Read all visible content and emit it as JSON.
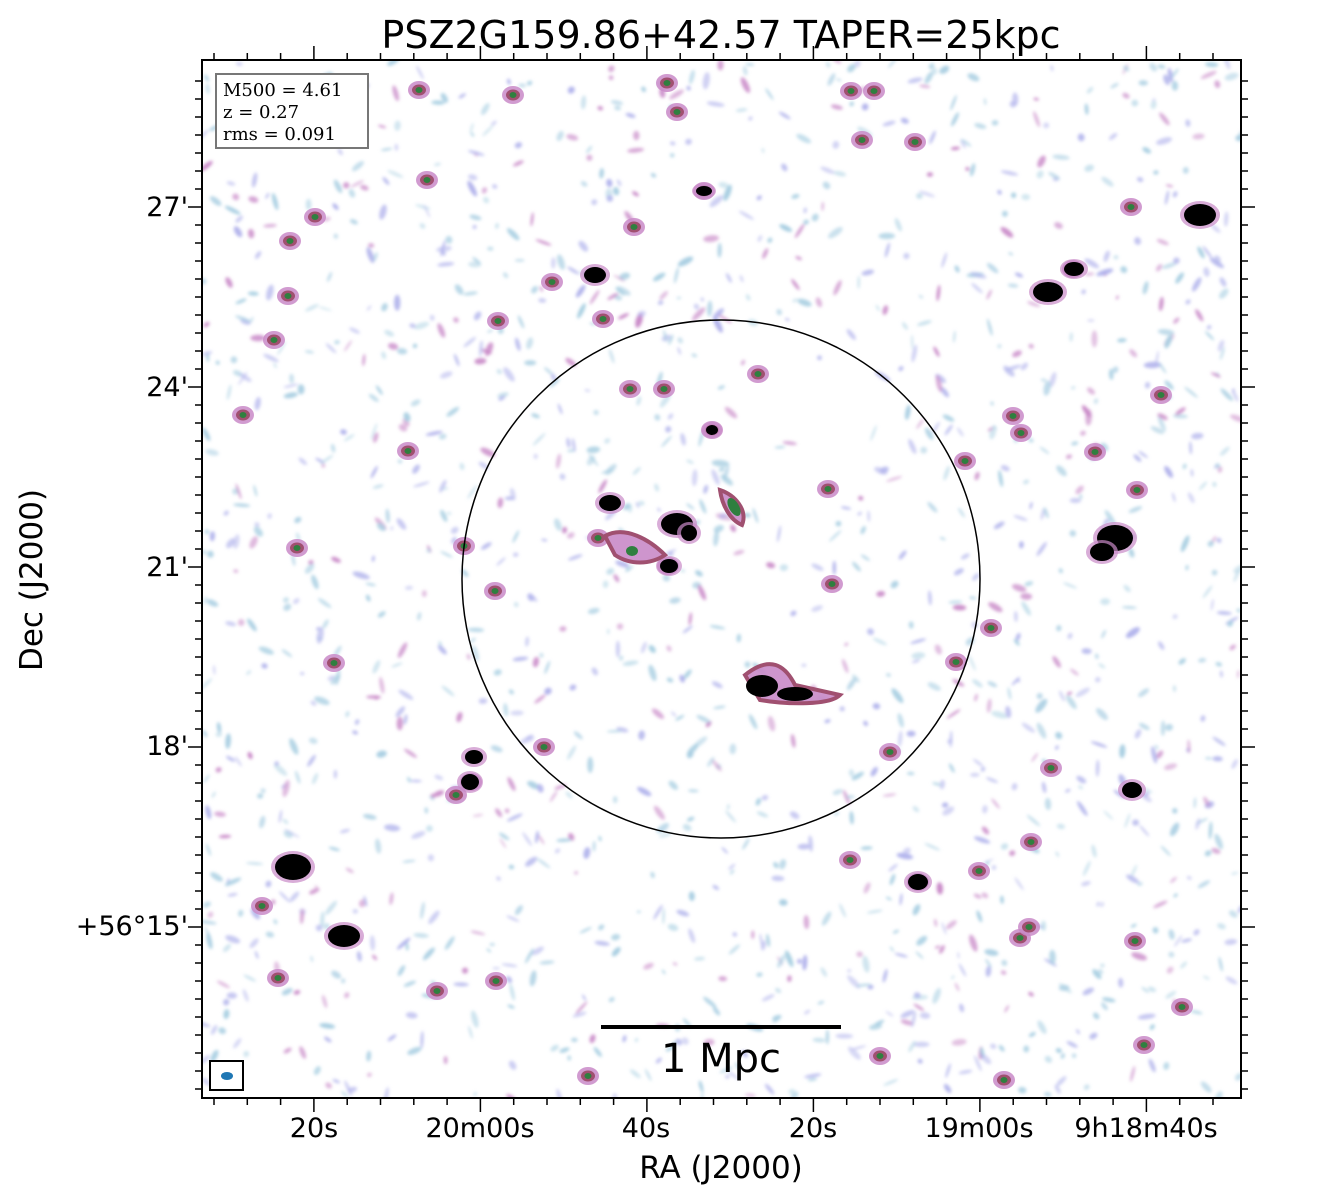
{
  "figure": {
    "title": "PSZ2G159.86+42.57 TAPER=25kpc",
    "xlabel": "RA (J2000)",
    "ylabel": "Dec (J2000)",
    "ra_ticks": [
      "20s",
      "20m00s",
      "40s",
      "20s",
      "19m00s",
      "9h18m40s"
    ],
    "dec_ticks": [
      "27'",
      "24'",
      "21'",
      "18'",
      "+56°15'"
    ],
    "info_box": {
      "line1": "M500 = 4.61",
      "line2": "z = 0.27",
      "line3": "rms = 0.091"
    },
    "scale_bar_label": "1 Mpc",
    "colors": {
      "faint": "#a9cfe2",
      "low": "#b2b4ec",
      "mid": "#c98ac8",
      "high": "#a05070",
      "core": "#2f7f3f",
      "saturated": "#000000",
      "beam": "#1f77b4"
    }
  }
}
